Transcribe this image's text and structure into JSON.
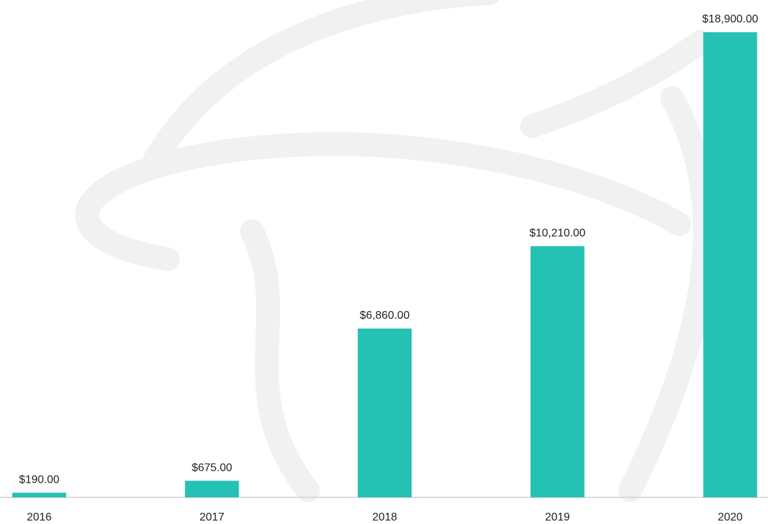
{
  "chart_data": {
    "type": "bar",
    "categories": [
      "2016",
      "2017",
      "2018",
      "2019",
      "2020"
    ],
    "values": [
      190,
      675,
      6860,
      10210,
      18900
    ],
    "value_labels": [
      "$190.00",
      "$675.00",
      "$6,860.00",
      "$10,210.00",
      "$18,900.00"
    ],
    "color": "#26c1b5",
    "ylim": [
      0,
      18900
    ]
  }
}
